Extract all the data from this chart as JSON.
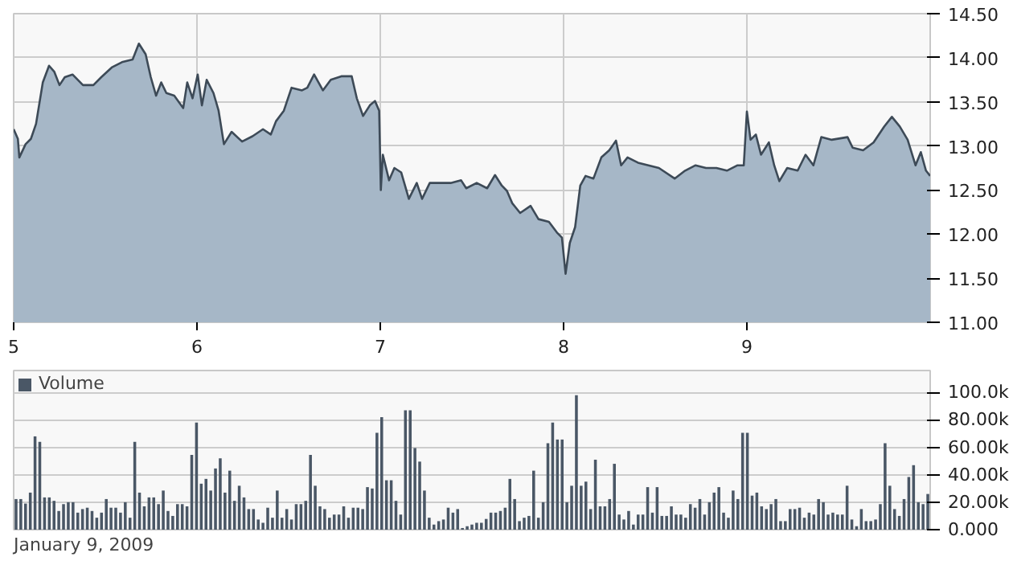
{
  "chart_data": [
    {
      "type": "area",
      "xlim": [
        5,
        10
      ],
      "xticks": [
        5,
        6,
        7,
        8,
        9
      ],
      "ylim": [
        11,
        14.5
      ],
      "yticks": [
        {
          "value": 11,
          "label": "11.00"
        },
        {
          "value": 11.5,
          "label": "11.50"
        },
        {
          "value": 12,
          "label": "12.00"
        },
        {
          "value": 12.5,
          "label": "12.50"
        },
        {
          "value": 13,
          "label": "13.00"
        },
        {
          "value": 13.5,
          "label": "13.50"
        },
        {
          "value": 14,
          "label": "14.00"
        },
        {
          "value": 14.5,
          "label": "14.50"
        }
      ],
      "grid": true,
      "x": [
        5.0,
        5.023,
        5.031,
        5.065,
        5.094,
        5.122,
        5.159,
        5.193,
        5.222,
        5.25,
        5.279,
        5.321,
        5.378,
        5.435,
        5.478,
        5.535,
        5.591,
        5.649,
        5.683,
        5.72,
        5.748,
        5.777,
        5.805,
        5.833,
        5.876,
        5.925,
        5.947,
        5.976,
        6.004,
        6.027,
        6.053,
        6.09,
        6.118,
        6.147,
        6.189,
        6.246,
        6.303,
        6.36,
        6.403,
        6.431,
        6.474,
        6.516,
        6.573,
        6.602,
        6.639,
        6.687,
        6.73,
        6.787,
        6.844,
        6.872,
        6.906,
        6.943,
        6.971,
        6.994,
        7.003,
        7.014,
        7.048,
        7.077,
        7.114,
        7.156,
        7.199,
        7.228,
        7.27,
        7.327,
        7.384,
        7.441,
        7.469,
        7.526,
        7.583,
        7.626,
        7.663,
        7.691,
        7.72,
        7.763,
        7.82,
        7.863,
        7.92,
        7.963,
        7.991,
        8.011,
        8.034,
        8.063,
        8.091,
        8.12,
        8.163,
        8.206,
        8.249,
        8.286,
        8.314,
        8.349,
        8.406,
        8.463,
        8.52,
        8.606,
        8.663,
        8.72,
        8.777,
        8.834,
        8.891,
        8.949,
        8.983,
        9.0,
        9.02,
        9.049,
        9.077,
        9.12,
        9.149,
        9.177,
        9.22,
        9.277,
        9.32,
        9.363,
        9.406,
        9.463,
        9.549,
        9.577,
        9.634,
        9.691,
        9.749,
        9.791,
        9.834,
        9.877,
        9.92,
        9.949,
        9.977,
        10.0
      ],
      "series": [
        {
          "color": "#3d4a57",
          "values": [
            13.19,
            13.08,
            12.87,
            13.02,
            13.08,
            13.25,
            13.72,
            13.91,
            13.84,
            13.69,
            13.78,
            13.81,
            13.69,
            13.69,
            13.78,
            13.89,
            13.95,
            13.98,
            14.16,
            14.04,
            13.78,
            13.57,
            13.72,
            13.6,
            13.57,
            13.43,
            13.72,
            13.54,
            13.81,
            13.46,
            13.75,
            13.6,
            13.4,
            13.02,
            13.16,
            13.05,
            13.11,
            13.19,
            13.13,
            13.28,
            13.4,
            13.66,
            13.63,
            13.66,
            13.81,
            13.63,
            13.75,
            13.79,
            13.79,
            13.54,
            13.34,
            13.46,
            13.51,
            13.4,
            12.5,
            12.9,
            12.61,
            12.75,
            12.7,
            12.4,
            12.58,
            12.4,
            12.58,
            12.58,
            12.58,
            12.61,
            12.52,
            12.58,
            12.52,
            12.67,
            12.55,
            12.49,
            12.35,
            12.24,
            12.32,
            12.17,
            12.14,
            12.02,
            11.96,
            11.55,
            11.9,
            12.08,
            12.55,
            12.66,
            12.63,
            12.87,
            12.95,
            13.06,
            12.78,
            12.87,
            12.81,
            12.78,
            12.75,
            12.63,
            12.72,
            12.78,
            12.75,
            12.75,
            12.72,
            12.78,
            12.78,
            13.39,
            13.07,
            13.13,
            12.9,
            13.04,
            12.78,
            12.6,
            12.75,
            12.72,
            12.9,
            12.78,
            13.1,
            13.07,
            13.1,
            12.98,
            12.95,
            13.04,
            13.22,
            13.33,
            13.22,
            13.07,
            12.78,
            12.93,
            12.72,
            12.66
          ]
        }
      ]
    },
    {
      "type": "bar",
      "legend": "top left",
      "grid": "y",
      "ylim": [
        0,
        116000
      ],
      "yticks": [
        {
          "value": 0,
          "label": "0.000"
        },
        {
          "value": 20000,
          "label": "20.00k"
        },
        {
          "value": 40000,
          "label": "40.00k"
        },
        {
          "value": 60000,
          "label": "60.00k"
        },
        {
          "value": 80000,
          "label": "80.00k"
        },
        {
          "value": 100000,
          "label": "100.0k"
        }
      ],
      "annotations": [
        "January 9, 2009"
      ],
      "categories": [
        null,
        null,
        null,
        null,
        null,
        null,
        null,
        null,
        null,
        null,
        null,
        null,
        null,
        null,
        null,
        null,
        null,
        null,
        null,
        null,
        null,
        null,
        null,
        null,
        null,
        null,
        null,
        null,
        null,
        null,
        null,
        null,
        null,
        null,
        null,
        null,
        null,
        null,
        null,
        null,
        null,
        null,
        null,
        null,
        null,
        null,
        null,
        null,
        null,
        null,
        null,
        null,
        null,
        null,
        null,
        null,
        null,
        null,
        null,
        null,
        null,
        null,
        null,
        null,
        null,
        null,
        null,
        null,
        null,
        null,
        null,
        null,
        null,
        null,
        null,
        null,
        null,
        null,
        null,
        null,
        null,
        null,
        null,
        null,
        null,
        null,
        null,
        null,
        null,
        null,
        null,
        null,
        null,
        null,
        null,
        null,
        null,
        null,
        null,
        null,
        null,
        null,
        null,
        null,
        null,
        null,
        null,
        null,
        null,
        null,
        null,
        null,
        null,
        null,
        null,
        null,
        null,
        null,
        null,
        null,
        null,
        null,
        null,
        null,
        null,
        null,
        null,
        null,
        null,
        null,
        null,
        null,
        null,
        null,
        null,
        null,
        null,
        null,
        null,
        null,
        null,
        null,
        null,
        null,
        null,
        null,
        null,
        null,
        null,
        null,
        null,
        null,
        null,
        null,
        null,
        null,
        null,
        null,
        null,
        null,
        null,
        null,
        null,
        null,
        null,
        null,
        null,
        null,
        null,
        null,
        null,
        null,
        null,
        null,
        null,
        null,
        null,
        null,
        null,
        null,
        null,
        null,
        null,
        null,
        null,
        null,
        null,
        null,
        null,
        null,
        null,
        null,
        null
      ],
      "series": [
        {
          "name": "Volume",
          "color": "#4a5766",
          "values": [
            22300,
            22300,
            19000,
            27000,
            68000,
            64000,
            23500,
            23500,
            21000,
            13600,
            18600,
            20000,
            20000,
            12400,
            15000,
            16000,
            13600,
            8700,
            12400,
            22300,
            16000,
            16000,
            12400,
            20000,
            8700,
            64000,
            27000,
            17000,
            23500,
            23500,
            18600,
            28500,
            13600,
            10000,
            18600,
            18600,
            17000,
            54500,
            78000,
            33500,
            37000,
            28500,
            44600,
            52000,
            27000,
            43000,
            21000,
            32000,
            23500,
            15000,
            15000,
            7400,
            5000,
            16000,
            8700,
            28500,
            8700,
            15000,
            7400,
            18600,
            18600,
            21000,
            54500,
            32000,
            17000,
            15000,
            8700,
            11000,
            11000,
            17000,
            8700,
            16000,
            16000,
            15000,
            31000,
            30000,
            70600,
            82000,
            36000,
            36000,
            21000,
            11000,
            87000,
            87000,
            59500,
            49600,
            28500,
            8700,
            3700,
            6200,
            7400,
            16000,
            12400,
            15000,
            1200,
            2500,
            3700,
            5000,
            5000,
            7800,
            12400,
            12400,
            13600,
            16000,
            37000,
            22300,
            6200,
            8700,
            10000,
            43000,
            8700,
            20000,
            63000,
            78000,
            65700,
            65700,
            20000,
            32000,
            98000,
            32000,
            35000,
            15000,
            51000,
            17000,
            17000,
            22300,
            48000,
            11000,
            7400,
            13600,
            3700,
            11000,
            11000,
            31000,
            12400,
            31000,
            10000,
            10000,
            17000,
            11000,
            11000,
            8700,
            18600,
            16000,
            22300,
            11000,
            20000,
            27000,
            31000,
            12400,
            8700,
            28500,
            22300,
            70600,
            70600,
            24800,
            27000,
            17000,
            15000,
            18600,
            22300,
            6200,
            6200,
            15000,
            15000,
            16000,
            8700,
            12400,
            11000,
            22300,
            20000,
            11000,
            12400,
            11000,
            11000,
            32000,
            7400,
            2500,
            15000,
            6200,
            6200,
            7400,
            18600,
            63000,
            32000,
            15000,
            10000,
            22300,
            38400,
            47000,
            20000,
            18600,
            26000
          ]
        }
      ]
    }
  ]
}
